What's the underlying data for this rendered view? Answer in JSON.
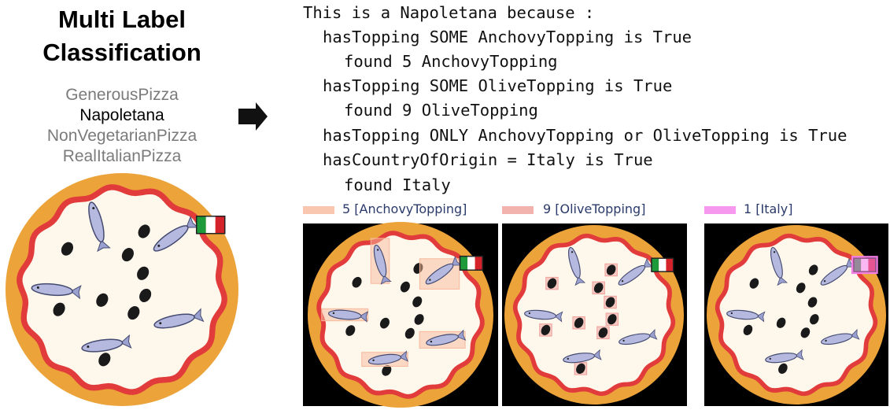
{
  "title": "Multi Label Classification",
  "labels": [
    "GenerousPizza",
    "Napoletana",
    "NonVegetarianPizza",
    "RealItalianPizza"
  ],
  "explanation": [
    "This is a Napoletana because :",
    "hasTopping SOME AnchovyTopping is True",
    "found 5 AnchovyTopping",
    "hasTopping SOME OliveTopping is True",
    "found 9 OliveTopping",
    "hasTopping ONLY AnchovyTopping or OliveTopping is True",
    "hasCountryOfOrigin = Italy is True",
    "found Italy"
  ],
  "legend": [
    {
      "label": "5 [AnchovyTopping]",
      "color": "#f7b99c"
    },
    {
      "label": "9 [OliveTopping]",
      "color": "#ef9f9a"
    },
    {
      "label": "1 [Italy]",
      "color": "#f47ee8"
    }
  ]
}
